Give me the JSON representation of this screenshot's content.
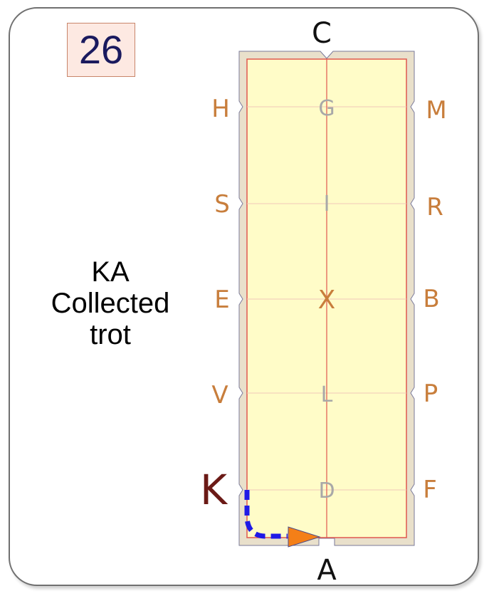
{
  "test": {
    "movement_number": "26",
    "movement_letters": "KA",
    "movement_gait": "Collected trot"
  },
  "arena": {
    "letters": {
      "top": "C",
      "bottom": "A",
      "left": [
        "H",
        "S",
        "E",
        "V",
        "K"
      ],
      "right": [
        "M",
        "R",
        "B",
        "P",
        "F"
      ],
      "centerline": [
        "G",
        "I",
        "X",
        "L",
        "D"
      ]
    },
    "highlighted_letter": "K"
  },
  "path": {
    "style": "dashed",
    "from": "K",
    "to": "A",
    "direction": "arrow toward A"
  },
  "colors": {
    "arena_fill": "#fffcc8",
    "arena_border_outer": "#e8dfc9",
    "arena_line": "#e0574f",
    "letter_gold": "#c87e3c",
    "letter_grey": "#a8a8a8",
    "highlight": "#6b1a16",
    "path_blue": "#1f1ae6",
    "arrow_orange": "#f47f17",
    "number_text": "#1a1a5e"
  }
}
